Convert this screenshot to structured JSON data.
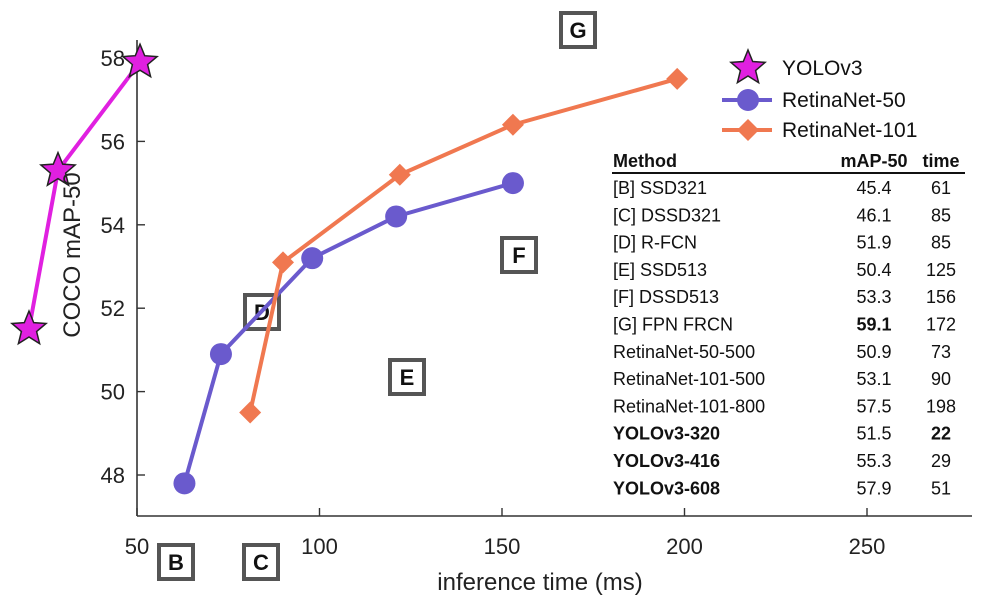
{
  "chart_data": {
    "type": "line",
    "xlabel": "inference time (ms)",
    "ylabel": "COCO mAP-50",
    "xlim": [
      50,
      280
    ],
    "ylim": [
      47,
      58.3
    ],
    "xticks": [
      50,
      100,
      150,
      200,
      250
    ],
    "yticks": [
      48,
      50,
      52,
      54,
      56,
      58
    ],
    "grid": false,
    "legend_position": "top-right",
    "series": [
      {
        "name": "YOLOv3",
        "marker": "star",
        "color": "#e020e0",
        "x": [
          22,
          29,
          51
        ],
        "y": [
          51.5,
          55.3,
          57.9
        ]
      },
      {
        "name": "RetinaNet-50",
        "marker": "circle",
        "color": "#6a5acd",
        "x": [
          63,
          73,
          98,
          121,
          153
        ],
        "y": [
          47.8,
          50.9,
          53.2,
          54.2,
          55.0
        ]
      },
      {
        "name": "RetinaNet-101",
        "marker": "diamond",
        "color": "#f07850",
        "x": [
          81,
          90,
          122,
          153,
          198
        ],
        "y": [
          49.5,
          53.1,
          55.2,
          56.4,
          57.5
        ]
      }
    ],
    "annotations": [
      {
        "label": "B",
        "x": 61,
        "y": 45.9
      },
      {
        "label": "C",
        "x": 85,
        "y": 45.9
      },
      {
        "label": "D",
        "x": 85,
        "y": 51.9
      },
      {
        "label": "E",
        "x": 125,
        "y": 50.4
      },
      {
        "label": "F",
        "x": 156,
        "y": 53.3
      },
      {
        "label": "G",
        "x": 172,
        "y": 59.1
      }
    ],
    "table": {
      "headers": [
        "Method",
        "mAP-50",
        "time"
      ],
      "rows": [
        {
          "method": "[B] SSD321",
          "map": "45.4",
          "time": "61",
          "bold_method": false,
          "bold_map": false,
          "bold_time": false
        },
        {
          "method": "[C] DSSD321",
          "map": "46.1",
          "time": "85",
          "bold_method": false,
          "bold_map": false,
          "bold_time": false
        },
        {
          "method": "[D] R-FCN",
          "map": "51.9",
          "time": "85",
          "bold_method": false,
          "bold_map": false,
          "bold_time": false
        },
        {
          "method": "[E] SSD513",
          "map": "50.4",
          "time": "125",
          "bold_method": false,
          "bold_map": false,
          "bold_time": false
        },
        {
          "method": "[F] DSSD513",
          "map": "53.3",
          "time": "156",
          "bold_method": false,
          "bold_map": false,
          "bold_time": false
        },
        {
          "method": "[G] FPN FRCN",
          "map": "59.1",
          "time": "172",
          "bold_method": false,
          "bold_map": true,
          "bold_time": false
        },
        {
          "method": "RetinaNet-50-500",
          "map": "50.9",
          "time": "73",
          "bold_method": false,
          "bold_map": false,
          "bold_time": false
        },
        {
          "method": "RetinaNet-101-500",
          "map": "53.1",
          "time": "90",
          "bold_method": false,
          "bold_map": false,
          "bold_time": false
        },
        {
          "method": "RetinaNet-101-800",
          "map": "57.5",
          "time": "198",
          "bold_method": false,
          "bold_map": false,
          "bold_time": false
        },
        {
          "method": "YOLOv3-320",
          "map": "51.5",
          "time": "22",
          "bold_method": true,
          "bold_map": false,
          "bold_time": true
        },
        {
          "method": "YOLOv3-416",
          "map": "55.3",
          "time": "29",
          "bold_method": true,
          "bold_map": false,
          "bold_time": false
        },
        {
          "method": "YOLOv3-608",
          "map": "57.9",
          "time": "51",
          "bold_method": true,
          "bold_map": false,
          "bold_time": false
        }
      ]
    }
  }
}
